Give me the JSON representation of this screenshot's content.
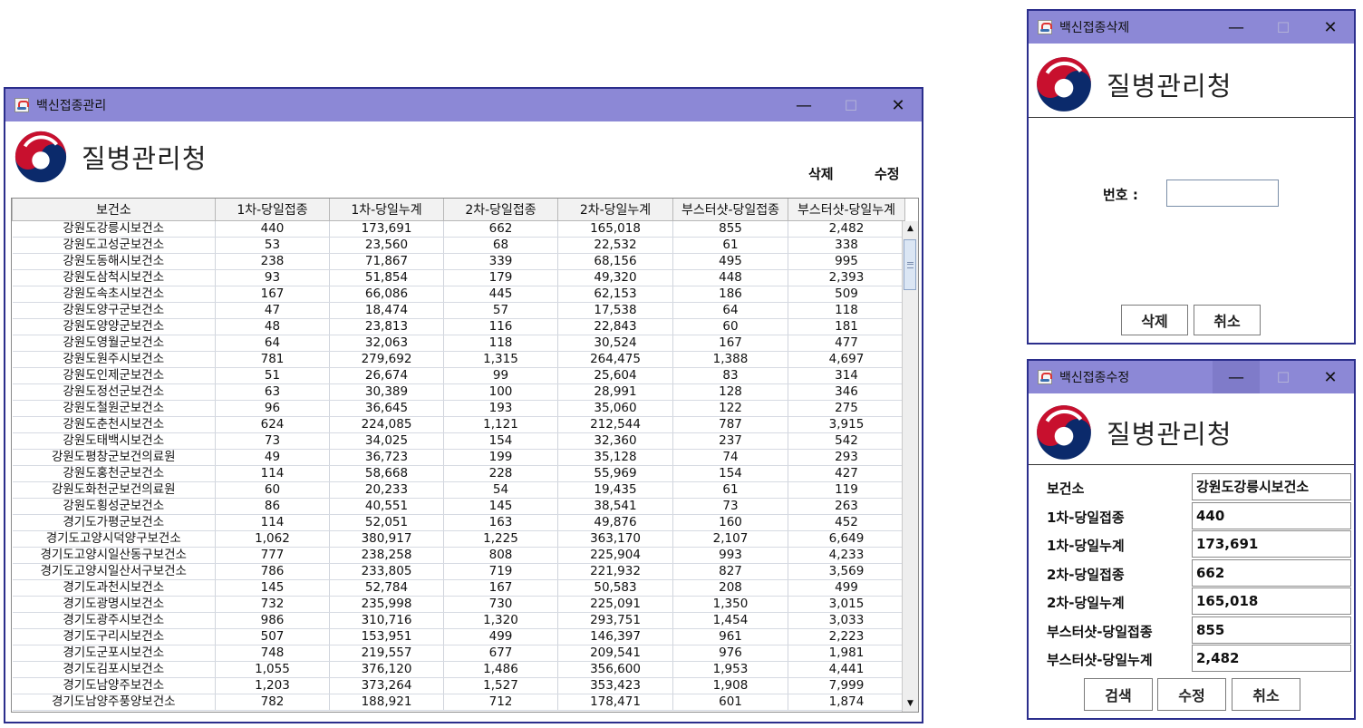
{
  "main_window": {
    "title": "백신접종관리",
    "logo_text": "질병관리청",
    "delete_label": "삭제",
    "edit_label": "수정",
    "columns": [
      "보건소",
      "1차-당일접종",
      "1차-당일누계",
      "2차-당일접종",
      "2차-당일누계",
      "부스터샷-당일접종",
      "부스터샷-당일누계"
    ],
    "rows": [
      [
        "강원도강릉시보건소",
        "440",
        "173,691",
        "662",
        "165,018",
        "855",
        "2,482"
      ],
      [
        "강원도고성군보건소",
        "53",
        "23,560",
        "68",
        "22,532",
        "61",
        "338"
      ],
      [
        "강원도동해시보건소",
        "238",
        "71,867",
        "339",
        "68,156",
        "495",
        "995"
      ],
      [
        "강원도삼척시보건소",
        "93",
        "51,854",
        "179",
        "49,320",
        "448",
        "2,393"
      ],
      [
        "강원도속초시보건소",
        "167",
        "66,086",
        "445",
        "62,153",
        "186",
        "509"
      ],
      [
        "강원도양구군보건소",
        "47",
        "18,474",
        "57",
        "17,538",
        "64",
        "118"
      ],
      [
        "강원도양양군보건소",
        "48",
        "23,813",
        "116",
        "22,843",
        "60",
        "181"
      ],
      [
        "강원도영월군보건소",
        "64",
        "32,063",
        "118",
        "30,524",
        "167",
        "477"
      ],
      [
        "강원도원주시보건소",
        "781",
        "279,692",
        "1,315",
        "264,475",
        "1,388",
        "4,697"
      ],
      [
        "강원도인제군보건소",
        "51",
        "26,674",
        "99",
        "25,604",
        "83",
        "314"
      ],
      [
        "강원도정선군보건소",
        "63",
        "30,389",
        "100",
        "28,991",
        "128",
        "346"
      ],
      [
        "강원도철원군보건소",
        "96",
        "36,645",
        "193",
        "35,060",
        "122",
        "275"
      ],
      [
        "강원도춘천시보건소",
        "624",
        "224,085",
        "1,121",
        "212,544",
        "787",
        "3,915"
      ],
      [
        "강원도태백시보건소",
        "73",
        "34,025",
        "154",
        "32,360",
        "237",
        "542"
      ],
      [
        "강원도평창군보건의료원",
        "49",
        "36,723",
        "199",
        "35,128",
        "74",
        "293"
      ],
      [
        "강원도홍천군보건소",
        "114",
        "58,668",
        "228",
        "55,969",
        "154",
        "427"
      ],
      [
        "강원도화천군보건의료원",
        "60",
        "20,233",
        "54",
        "19,435",
        "61",
        "119"
      ],
      [
        "강원도횡성군보건소",
        "86",
        "40,551",
        "145",
        "38,541",
        "73",
        "263"
      ],
      [
        "경기도가평군보건소",
        "114",
        "52,051",
        "163",
        "49,876",
        "160",
        "452"
      ],
      [
        "경기도고양시덕양구보건소",
        "1,062",
        "380,917",
        "1,225",
        "363,170",
        "2,107",
        "6,649"
      ],
      [
        "경기도고양시일산동구보건소",
        "777",
        "238,258",
        "808",
        "225,904",
        "993",
        "4,233"
      ],
      [
        "경기도고양시일산서구보건소",
        "786",
        "233,805",
        "719",
        "221,932",
        "827",
        "3,569"
      ],
      [
        "경기도과천시보건소",
        "145",
        "52,784",
        "167",
        "50,583",
        "208",
        "499"
      ],
      [
        "경기도광명시보건소",
        "732",
        "235,998",
        "730",
        "225,091",
        "1,350",
        "3,015"
      ],
      [
        "경기도광주시보건소",
        "986",
        "310,716",
        "1,320",
        "293,751",
        "1,454",
        "3,033"
      ],
      [
        "경기도구리시보건소",
        "507",
        "153,951",
        "499",
        "146,397",
        "961",
        "2,223"
      ],
      [
        "경기도군포시보건소",
        "748",
        "219,557",
        "677",
        "209,541",
        "976",
        "1,981"
      ],
      [
        "경기도김포시보건소",
        "1,055",
        "376,120",
        "1,486",
        "356,600",
        "1,953",
        "4,441"
      ],
      [
        "경기도남양주보건소",
        "1,203",
        "373,264",
        "1,527",
        "353,423",
        "1,908",
        "7,999"
      ],
      [
        "경기도남양주풍양보건소",
        "782",
        "188,921",
        "712",
        "178,471",
        "601",
        "1,874"
      ]
    ]
  },
  "delete_window": {
    "title": "백신접종삭제",
    "logo_text": "질병관리청",
    "number_label": "번호 :",
    "number_value": "",
    "delete_label": "삭제",
    "cancel_label": "취소"
  },
  "edit_window": {
    "title": "백신접종수정",
    "logo_text": "질병관리청",
    "fields": [
      {
        "label": "보건소",
        "value": "강원도강릉시보건소"
      },
      {
        "label": "1차-당일접종",
        "value": "440"
      },
      {
        "label": "1차-당일누계",
        "value": "173,691"
      },
      {
        "label": "2차-당일접종",
        "value": "662"
      },
      {
        "label": "2차-당일누계",
        "value": "165,018"
      },
      {
        "label": "부스터샷-당일접종",
        "value": "855"
      },
      {
        "label": "부스터샷-당일누계",
        "value": "2,482"
      }
    ],
    "search_label": "검색",
    "edit_label": "수정",
    "cancel_label": "취소"
  },
  "window_controls": {
    "minimize": "—",
    "maximize": "☐",
    "close": "✕"
  },
  "colors": {
    "titlebar": "#8c88d6",
    "frame": "#2b2e8c",
    "logo_red": "#c8102e",
    "logo_blue": "#0b2a6b"
  }
}
